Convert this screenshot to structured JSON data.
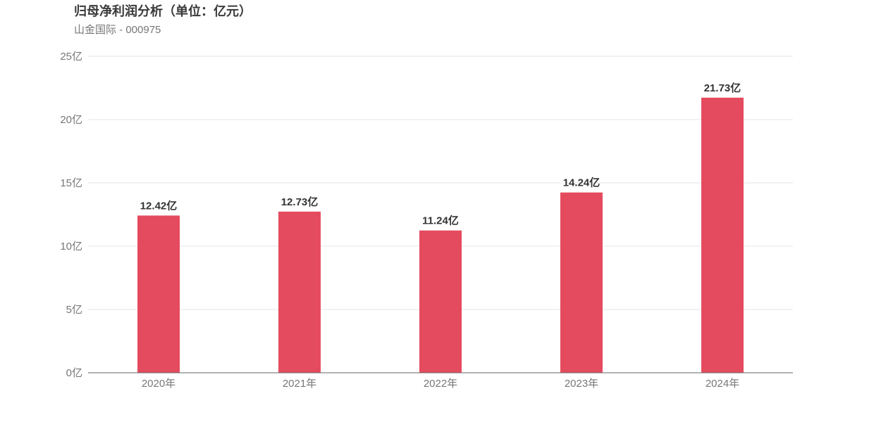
{
  "chart_data": {
    "type": "bar",
    "title": "归母净利润分析（单位：亿元）",
    "subtitle": "山金国际 - 000975",
    "categories": [
      "2020年",
      "2021年",
      "2022年",
      "2023年",
      "2024年"
    ],
    "values": [
      12.42,
      12.73,
      11.24,
      14.24,
      21.73
    ],
    "data_labels": [
      "12.42亿",
      "12.73亿",
      "11.24亿",
      "14.24亿",
      "21.73亿"
    ],
    "ylim": [
      0,
      25
    ],
    "yticks": [
      0,
      5,
      10,
      15,
      20,
      25
    ],
    "ytick_labels": [
      "0亿",
      "5亿",
      "10亿",
      "15亿",
      "20亿",
      "25亿"
    ],
    "xlabel": "",
    "ylabel": "",
    "grid": true,
    "legend": "none",
    "colors": {
      "bar": "#e54b5e",
      "grid": "#e6e6ee",
      "axis": "#666666"
    }
  }
}
